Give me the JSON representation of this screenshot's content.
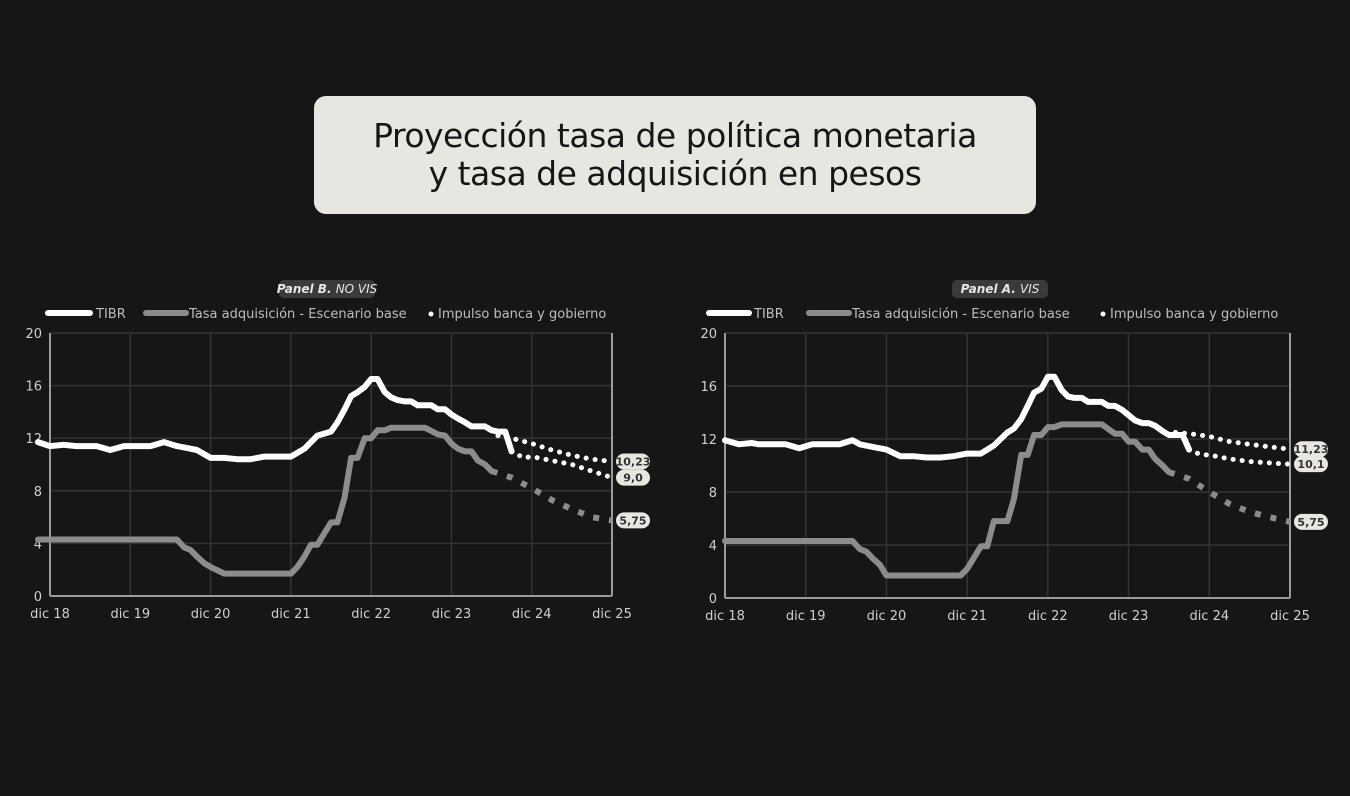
{
  "title": {
    "line1": "Proyección tasa de política monetaria",
    "line2": "y tasa de adquisición en pesos"
  },
  "colors": {
    "background": "#161616",
    "tibr": "#ffffff",
    "adquisicion": "#8c8c8c",
    "grid": "#333333",
    "badge": "#e8e6e1",
    "title_box": "#e8e6e1"
  },
  "legend": {
    "tibr": "TIBR",
    "adquisicion": "Tasa adquisición - Escenario base",
    "impulso": "Impulso banca y gobierno"
  },
  "chart_data": [
    {
      "type": "line",
      "panel_label": "Panel B.",
      "panel_sublabel": "NO VIS",
      "ylim": [
        0,
        20
      ],
      "yticks": [
        0,
        4,
        8,
        12,
        16,
        20
      ],
      "xlim": [
        0,
        7
      ],
      "xticks": [
        "dic 18",
        "dic 19",
        "dic 20",
        "dic 21",
        "dic 22",
        "dic 23",
        "dic 24",
        "dic 25"
      ],
      "grid": true,
      "series": [
        {
          "name": "TIBR",
          "style": "solid",
          "x": [
            -0.15,
            0,
            0.17,
            0.33,
            0.42,
            0.58,
            0.75,
            0.92,
            1.08,
            1.25,
            1.42,
            1.58,
            1.67,
            1.83,
            2.0,
            2.17,
            2.33,
            2.5,
            2.67,
            2.83,
            3.0,
            3.17,
            3.33,
            3.5,
            3.58,
            3.67,
            3.75,
            3.83,
            3.92,
            4.0,
            4.08,
            4.17,
            4.25,
            4.33,
            4.42,
            4.5,
            4.58,
            4.67,
            4.75,
            4.83,
            4.92,
            5.0,
            5.08,
            5.17,
            5.25,
            5.33,
            5.42,
            5.5,
            5.58,
            5.67,
            5.75
          ],
          "y": [
            11.7,
            11.4,
            11.5,
            11.4,
            11.4,
            11.4,
            11.1,
            11.4,
            11.4,
            11.4,
            11.7,
            11.4,
            11.3,
            11.1,
            10.5,
            10.5,
            10.4,
            10.4,
            10.6,
            10.6,
            10.6,
            11.2,
            12.2,
            12.5,
            13.2,
            14.2,
            15.2,
            15.5,
            15.9,
            16.5,
            16.5,
            15.5,
            15.1,
            14.9,
            14.8,
            14.8,
            14.5,
            14.5,
            14.5,
            14.2,
            14.2,
            13.8,
            13.5,
            13.2,
            12.9,
            12.9,
            12.9,
            12.6,
            12.5,
            12.5,
            11.0
          ]
        },
        {
          "name": "Tasa adquisición - Escenario base",
          "style": "solid",
          "x": [
            -0.15,
            0,
            0.25,
            0.5,
            0.75,
            1.0,
            1.25,
            1.33,
            1.42,
            1.5,
            1.58,
            1.67,
            1.75,
            1.83,
            1.92,
            2.0,
            2.17,
            2.33,
            2.5,
            2.67,
            2.75,
            2.83,
            2.92,
            3.0,
            3.08,
            3.17,
            3.25,
            3.33,
            3.5,
            3.58,
            3.67,
            3.75,
            3.83,
            3.92,
            4.0,
            4.08,
            4.17,
            4.25,
            4.33,
            4.5,
            4.67,
            4.83,
            4.92,
            5.0,
            5.08,
            5.17,
            5.25,
            5.33,
            5.42,
            5.5
          ],
          "y": [
            4.3,
            4.3,
            4.3,
            4.3,
            4.3,
            4.3,
            4.3,
            4.3,
            4.3,
            4.3,
            4.3,
            3.7,
            3.5,
            3.0,
            2.5,
            2.2,
            1.7,
            1.7,
            1.7,
            1.7,
            1.7,
            1.7,
            1.7,
            1.7,
            2.2,
            3.0,
            3.9,
            3.9,
            5.6,
            5.6,
            7.5,
            10.5,
            10.5,
            12.0,
            12.0,
            12.6,
            12.6,
            12.8,
            12.8,
            12.8,
            12.8,
            12.3,
            12.2,
            11.6,
            11.2,
            11.0,
            11.0,
            10.3,
            10.0,
            9.5
          ]
        },
        {
          "name": "Impulso banca y gobierno",
          "style": "dotted",
          "x": [
            5.58,
            5.75,
            6.0,
            6.25,
            6.5,
            6.75,
            7.0
          ],
          "y": [
            12.2,
            12.0,
            11.6,
            11.1,
            10.7,
            10.4,
            10.23
          ]
        },
        {
          "name": "TIBR",
          "style": "dotted",
          "x": [
            5.75,
            5.9,
            6.0,
            6.25,
            6.5,
            6.75,
            7.0
          ],
          "y": [
            11.0,
            10.5,
            10.6,
            10.3,
            10.0,
            9.5,
            9.0
          ]
        },
        {
          "name": "Tasa adquisición - Escenario base",
          "style": "dashed",
          "x": [
            5.5,
            5.75,
            6.0,
            6.25,
            6.5,
            6.75,
            7.0
          ],
          "y": [
            9.5,
            9.0,
            8.2,
            7.3,
            6.6,
            6.0,
            5.75
          ]
        }
      ],
      "end_labels": [
        "10,23",
        "9,0",
        "5,75"
      ],
      "end_values": [
        10.23,
        9.0,
        5.75
      ]
    },
    {
      "type": "line",
      "panel_label": "Panel A.",
      "panel_sublabel": "VIS",
      "ylim": [
        0,
        20
      ],
      "yticks": [
        0,
        4,
        8,
        12,
        16,
        20
      ],
      "xlim": [
        0,
        7
      ],
      "xticks": [
        "dic 18",
        "dic 19",
        "dic 20",
        "dic 21",
        "dic 22",
        "dic 23",
        "dic 24",
        "dic 25"
      ],
      "grid": true,
      "series": [
        {
          "name": "TIBR",
          "style": "solid",
          "x": [
            0,
            0.17,
            0.33,
            0.42,
            0.58,
            0.75,
            0.92,
            1.08,
            1.25,
            1.42,
            1.58,
            1.67,
            1.83,
            2.0,
            2.17,
            2.33,
            2.5,
            2.67,
            2.83,
            3.0,
            3.17,
            3.33,
            3.5,
            3.58,
            3.67,
            3.75,
            3.83,
            3.92,
            4.0,
            4.08,
            4.17,
            4.25,
            4.33,
            4.42,
            4.5,
            4.58,
            4.67,
            4.75,
            4.83,
            4.92,
            5.0,
            5.08,
            5.17,
            5.25,
            5.33,
            5.42,
            5.5,
            5.58,
            5.67,
            5.75
          ],
          "y": [
            11.9,
            11.6,
            11.7,
            11.6,
            11.6,
            11.6,
            11.3,
            11.6,
            11.6,
            11.6,
            11.9,
            11.6,
            11.4,
            11.2,
            10.7,
            10.7,
            10.6,
            10.6,
            10.7,
            10.9,
            10.9,
            11.5,
            12.5,
            12.8,
            13.5,
            14.5,
            15.5,
            15.8,
            16.7,
            16.7,
            15.7,
            15.2,
            15.1,
            15.1,
            14.8,
            14.8,
            14.8,
            14.5,
            14.5,
            14.2,
            13.8,
            13.4,
            13.2,
            13.2,
            13.0,
            12.6,
            12.3,
            12.3,
            12.3,
            11.2
          ]
        },
        {
          "name": "Tasa adquisición - Escenario base",
          "style": "solid",
          "x": [
            0,
            0.25,
            0.5,
            0.75,
            1.0,
            1.25,
            1.33,
            1.42,
            1.5,
            1.58,
            1.67,
            1.75,
            1.83,
            1.92,
            2.0,
            2.17,
            2.33,
            2.5,
            2.67,
            2.75,
            2.83,
            2.92,
            3.0,
            3.08,
            3.17,
            3.25,
            3.33,
            3.5,
            3.58,
            3.67,
            3.75,
            3.83,
            3.92,
            4.0,
            4.08,
            4.17,
            4.25,
            4.33,
            4.5,
            4.67,
            4.83,
            4.92,
            5.0,
            5.08,
            5.17,
            5.25,
            5.33,
            5.42,
            5.5
          ],
          "y": [
            4.3,
            4.3,
            4.3,
            4.3,
            4.3,
            4.3,
            4.3,
            4.3,
            4.3,
            4.3,
            3.7,
            3.5,
            3.0,
            2.5,
            1.7,
            1.7,
            1.7,
            1.7,
            1.7,
            1.7,
            1.7,
            1.7,
            2.2,
            3.0,
            3.9,
            3.9,
            5.8,
            5.8,
            7.5,
            10.8,
            10.8,
            12.3,
            12.3,
            12.9,
            12.9,
            13.1,
            13.1,
            13.1,
            13.1,
            13.1,
            12.4,
            12.4,
            11.8,
            11.8,
            11.2,
            11.2,
            10.5,
            10.0,
            9.5
          ]
        },
        {
          "name": "Impulso banca y gobierno",
          "style": "dotted",
          "x": [
            5.58,
            5.75,
            6.0,
            6.25,
            6.5,
            6.75,
            7.0
          ],
          "y": [
            12.5,
            12.4,
            12.2,
            11.8,
            11.6,
            11.4,
            11.23
          ]
        },
        {
          "name": "TIBR",
          "style": "dotted",
          "x": [
            5.75,
            5.9,
            6.0,
            6.25,
            6.5,
            6.75,
            7.0
          ],
          "y": [
            11.2,
            10.8,
            10.8,
            10.5,
            10.3,
            10.2,
            10.1
          ]
        },
        {
          "name": "Tasa adquisición - Escenario base",
          "style": "dashed",
          "x": [
            5.5,
            5.75,
            6.0,
            6.25,
            6.5,
            6.75,
            7.0
          ],
          "y": [
            9.5,
            9.0,
            8.0,
            7.1,
            6.5,
            6.1,
            5.75
          ]
        }
      ],
      "end_labels": [
        "11,23",
        "10,1",
        "5,75"
      ],
      "end_values": [
        11.23,
        10.1,
        5.75
      ]
    }
  ]
}
